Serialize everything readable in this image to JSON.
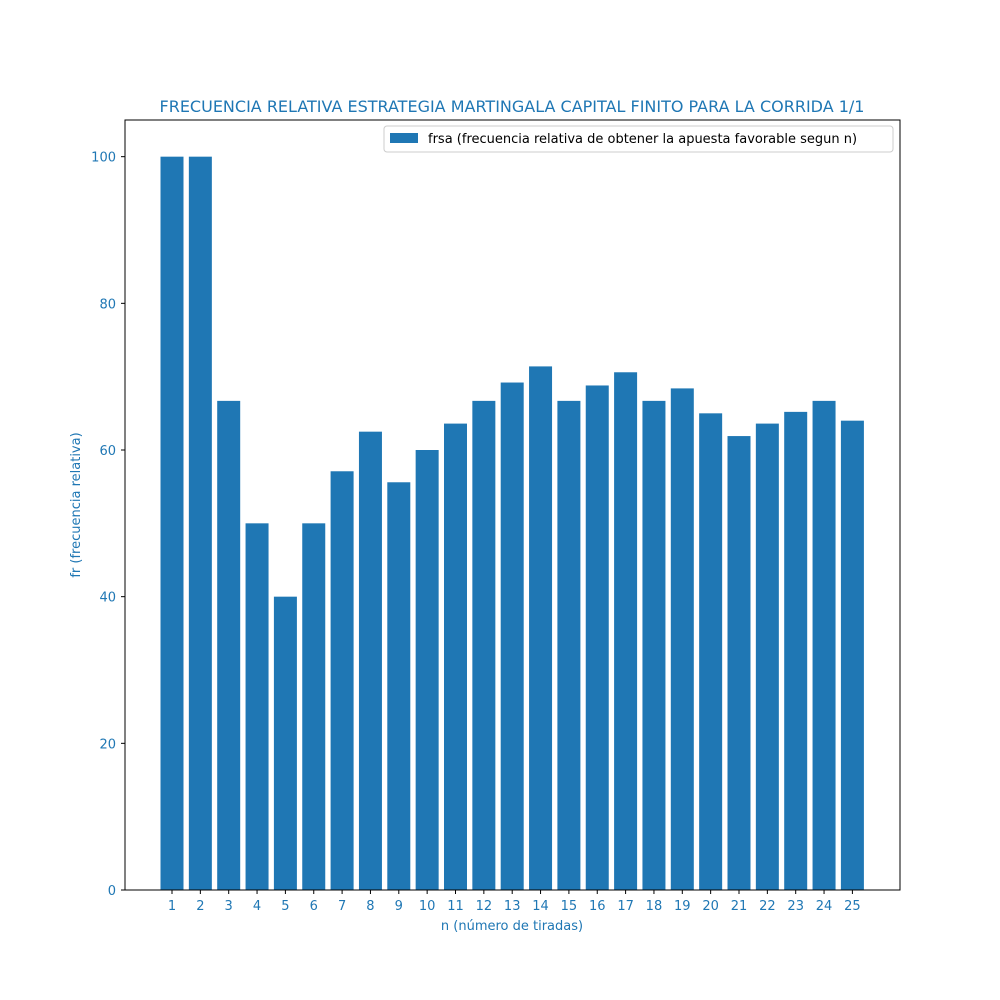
{
  "chart_data": {
    "type": "bar",
    "title": "FRECUENCIA RELATIVA ESTRATEGIA MARTINGALA CAPITAL FINITO PARA LA CORRIDA 1/1",
    "xlabel": "n (número de tiradas)",
    "ylabel": "fr (frecuencia relativa)",
    "categories": [
      "1",
      "2",
      "3",
      "4",
      "5",
      "6",
      "7",
      "8",
      "9",
      "10",
      "11",
      "12",
      "13",
      "14",
      "15",
      "16",
      "17",
      "18",
      "19",
      "20",
      "21",
      "22",
      "23",
      "24",
      "25"
    ],
    "series": [
      {
        "name": "frsa (frecuencia relativa de obtener la apuesta favorable segun n)",
        "values": [
          100,
          100,
          66.7,
          50,
          40,
          50,
          57.1,
          62.5,
          55.6,
          60,
          63.6,
          66.7,
          69.2,
          71.4,
          66.7,
          68.8,
          70.6,
          66.7,
          68.4,
          65,
          61.9,
          63.6,
          65.2,
          66.7,
          64
        ]
      }
    ],
    "ylim": [
      0,
      105
    ],
    "yticks": [
      "0",
      "20",
      "40",
      "60",
      "80",
      "100"
    ],
    "grid": false,
    "legend_position": "top-right",
    "colors": {
      "bar": "#1f77b4",
      "text": "#1f77b4",
      "axis": "#000000",
      "legend_text": "#000000"
    }
  }
}
